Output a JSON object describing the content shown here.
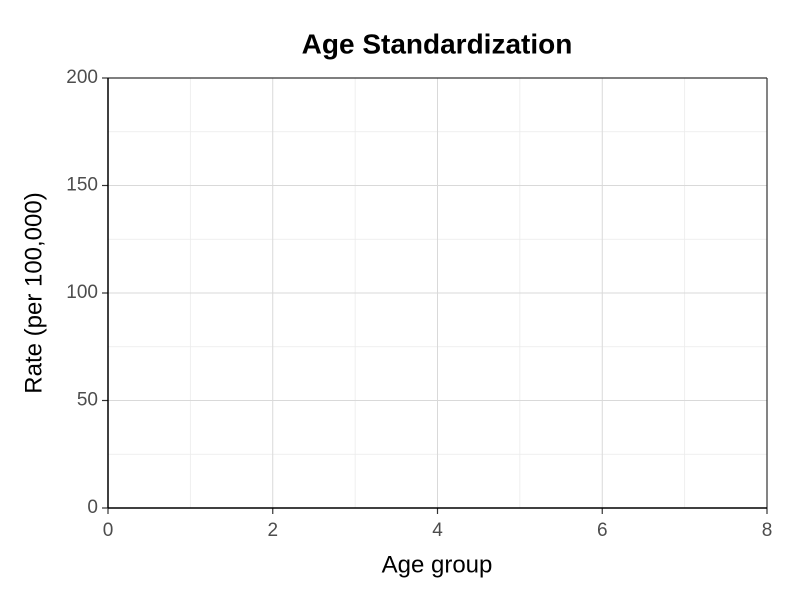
{
  "chart_data": {
    "type": "line",
    "title": "Age Standardization",
    "x_label": "Age group",
    "y_label": "Rate (per 100,000)",
    "xlim": [
      0,
      8
    ],
    "xticks": [
      0,
      2,
      4,
      6,
      8
    ],
    "ylim": [
      0,
      200
    ],
    "yticks": [
      0,
      50,
      100,
      150,
      200
    ],
    "grid": true
  }
}
